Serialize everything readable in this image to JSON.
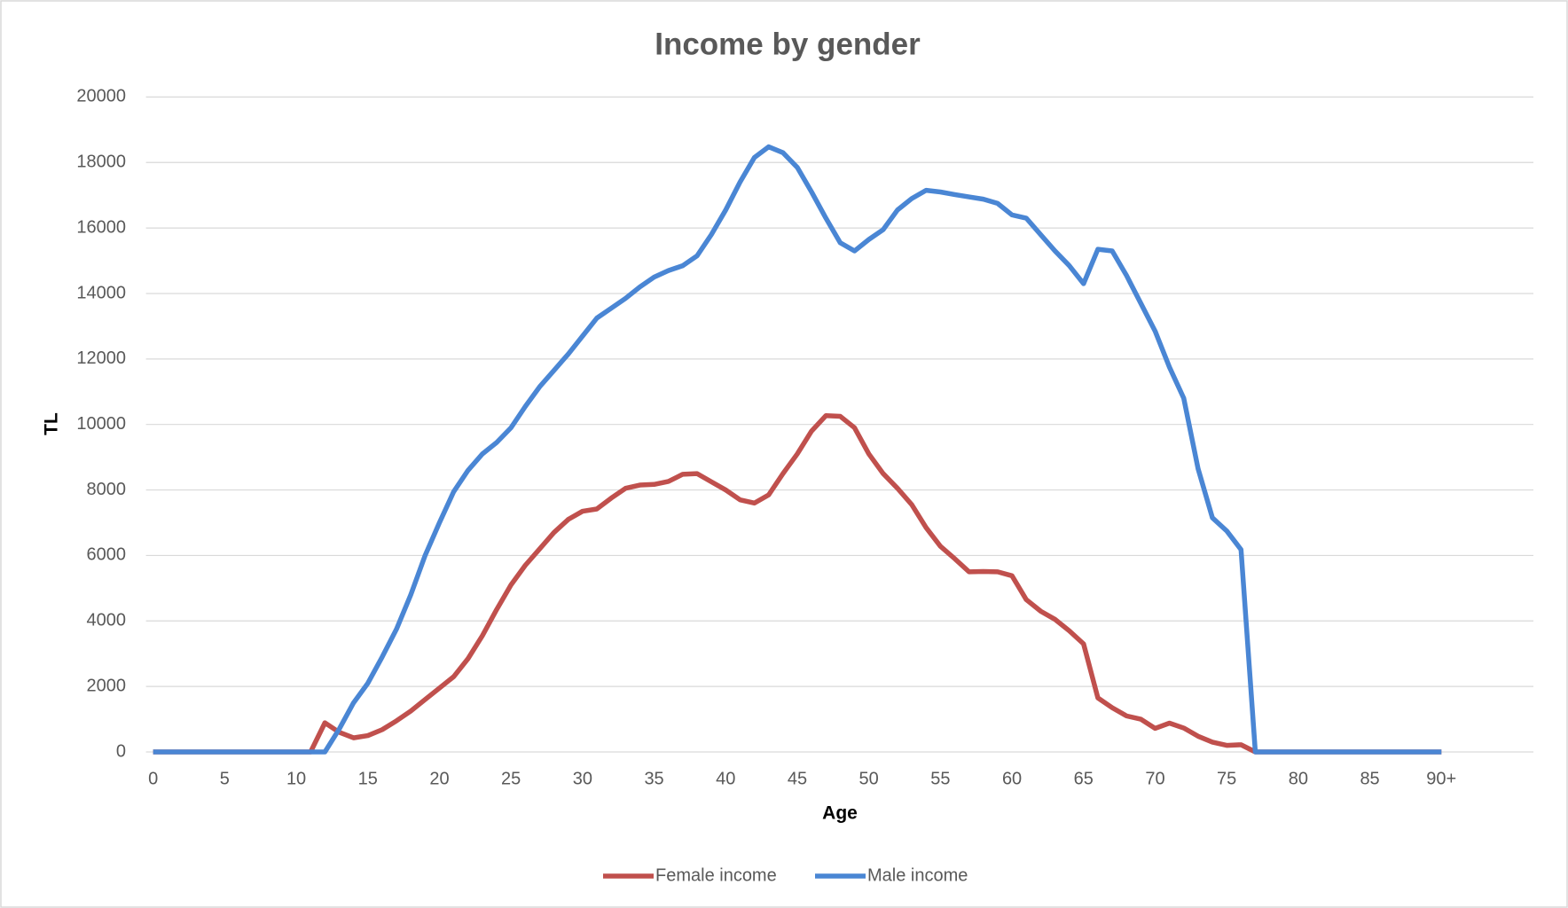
{
  "chart_data": {
    "type": "line",
    "title": "Income by gender",
    "x_label": "Age",
    "y_label": "TL",
    "categories": [
      "0",
      null,
      null,
      null,
      null,
      "5",
      null,
      null,
      null,
      null,
      "10",
      null,
      null,
      null,
      null,
      "15",
      null,
      null,
      null,
      null,
      "20",
      null,
      null,
      null,
      null,
      "25",
      null,
      null,
      null,
      null,
      "30",
      null,
      null,
      null,
      null,
      "35",
      null,
      null,
      null,
      null,
      "40",
      null,
      null,
      null,
      null,
      "45",
      null,
      null,
      null,
      null,
      "50",
      null,
      null,
      null,
      null,
      "55",
      null,
      null,
      null,
      null,
      "60",
      null,
      null,
      null,
      null,
      "65",
      null,
      null,
      null,
      null,
      "70",
      null,
      null,
      null,
      null,
      "75",
      null,
      null,
      null,
      null,
      "80",
      null,
      null,
      null,
      null,
      "85",
      null,
      null,
      null,
      null,
      "90+"
    ],
    "series": [
      {
        "name": "Female income",
        "color": "#c0504d",
        "values": [
          0,
          0,
          0,
          0,
          0,
          0,
          0,
          0,
          0,
          0,
          0,
          0,
          890,
          600,
          430,
          500,
          680,
          950,
          1250,
          1600,
          1950,
          2300,
          2850,
          3550,
          4350,
          5100,
          5700,
          6200,
          6700,
          7100,
          7350,
          7420,
          7750,
          8050,
          8150,
          8170,
          8260,
          8480,
          8500,
          8250,
          8000,
          7700,
          7600,
          7850,
          8500,
          9100,
          9800,
          10270,
          10250,
          9900,
          9100,
          8500,
          8050,
          7550,
          6850,
          6280,
          5900,
          5500,
          5510,
          5500,
          5380,
          4650,
          4300,
          4050,
          3700,
          3300,
          1650,
          1350,
          1100,
          1000,
          720,
          880,
          730,
          480,
          300,
          200,
          220,
          0,
          0,
          0,
          0,
          0,
          0,
          0,
          0,
          0,
          0,
          0,
          0,
          0,
          0
        ]
      },
      {
        "name": "Male income",
        "color": "#4a86d4",
        "values": [
          0,
          0,
          0,
          0,
          0,
          0,
          0,
          0,
          0,
          0,
          0,
          0,
          0,
          700,
          1500,
          2100,
          2900,
          3750,
          4800,
          6000,
          7000,
          7950,
          8600,
          9100,
          9450,
          9900,
          10550,
          11150,
          11650,
          12150,
          12700,
          13250,
          13550,
          13850,
          14200,
          14500,
          14700,
          14850,
          15150,
          15800,
          16550,
          17400,
          18150,
          18480,
          18300,
          17850,
          17100,
          16300,
          15550,
          15300,
          15650,
          15950,
          16550,
          16900,
          17150,
          17100,
          17020,
          16950,
          16880,
          16750,
          16400,
          16300,
          15800,
          15300,
          14850,
          14300,
          15350,
          15300,
          14550,
          13700,
          12850,
          11750,
          10800,
          8650,
          7150,
          6750,
          6180,
          0,
          0,
          0,
          0,
          0,
          0,
          0,
          0,
          0,
          0,
          0,
          0,
          0,
          0
        ]
      }
    ],
    "ylim": [
      0,
      20000
    ],
    "yticks": [
      0,
      2000,
      4000,
      6000,
      8000,
      10000,
      12000,
      14000,
      16000,
      18000,
      20000
    ],
    "grid": true,
    "legend": "bottom"
  }
}
